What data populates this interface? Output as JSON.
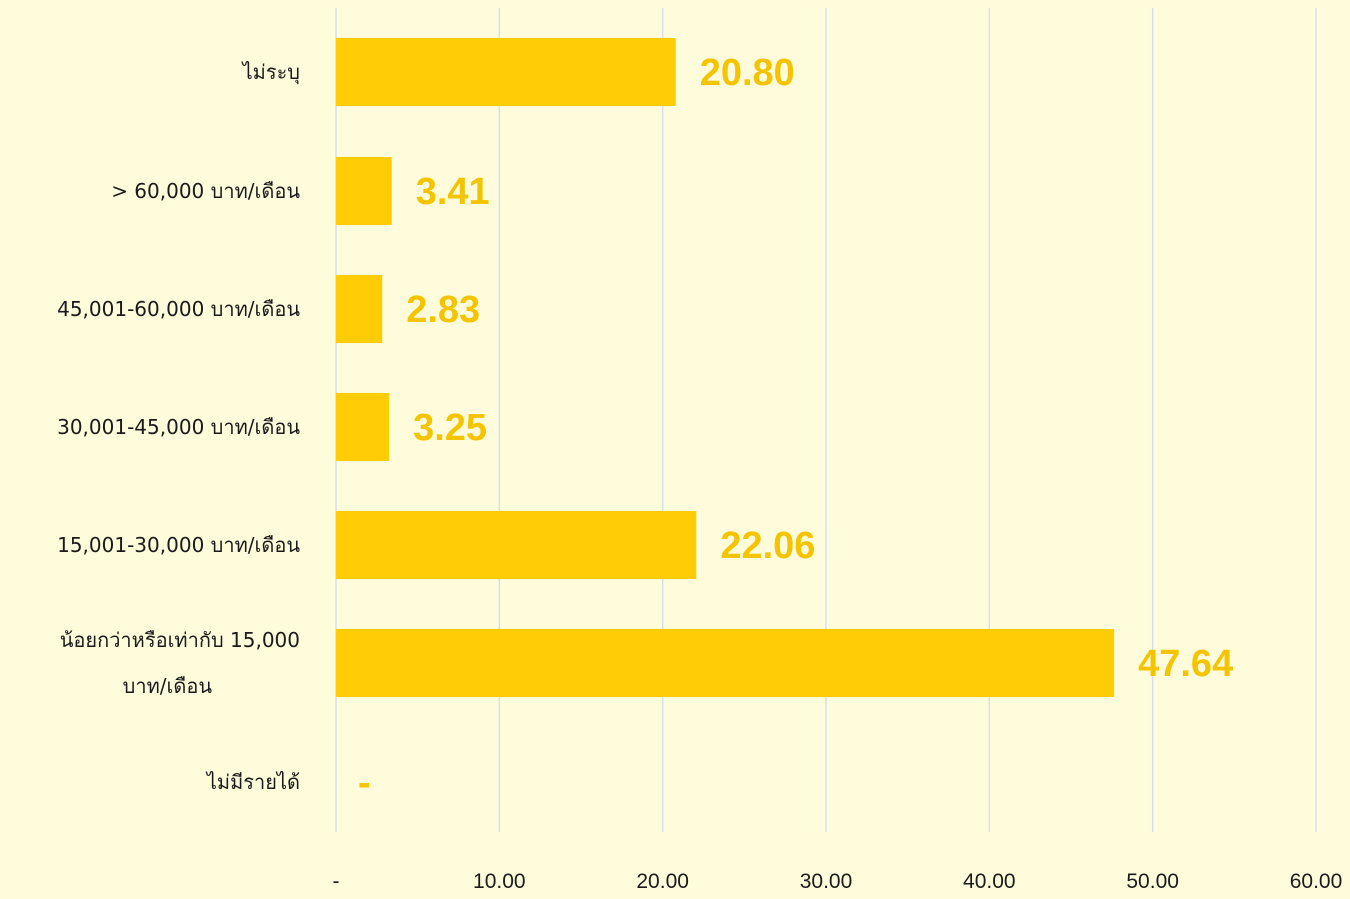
{
  "chart_data": {
    "type": "bar",
    "orientation": "horizontal",
    "categories": [
      "ไม่ระบุ",
      "> 60,000 บาท/เดือน",
      "45,001-60,000 บาท/เดือน",
      "30,001-45,000 บาท/เดือน",
      "15,001-30,000 บาท/เดือน",
      "น้อยกว่าหรือเท่ากับ 15,000 บาท/เดือน",
      "ไม่มีรายได้"
    ],
    "category_lines": [
      [
        "ไม่ระบุ"
      ],
      [
        "> 60,000 บาท/เดือน"
      ],
      [
        "45,001-60,000 บาท/เดือน"
      ],
      [
        "30,001-45,000 บาท/เดือน"
      ],
      [
        "15,001-30,000 บาท/เดือน"
      ],
      [
        "น้อยกว่าหรือเท่ากับ 15,000",
        "บาท/เดือน"
      ],
      [
        "ไม่มีรายได้"
      ]
    ],
    "values": [
      20.8,
      3.41,
      2.83,
      3.25,
      22.06,
      47.64,
      0
    ],
    "value_labels": [
      "20.80",
      "3.41",
      "2.83",
      "3.25",
      "22.06",
      "47.64",
      "-"
    ],
    "xlim": [
      0,
      60
    ],
    "xticks": [
      0,
      10,
      20,
      30,
      40,
      50,
      60
    ],
    "xtick_labels": [
      "-",
      "10.00",
      "20.00",
      "30.00",
      "40.00",
      "50.00",
      "60.00"
    ],
    "grid": true,
    "legend": "none",
    "colors": {
      "background": "#FFFCDC",
      "bar": "#FFCC05",
      "value_label": "#F5C400",
      "gridline": "#D6E0EC"
    }
  }
}
